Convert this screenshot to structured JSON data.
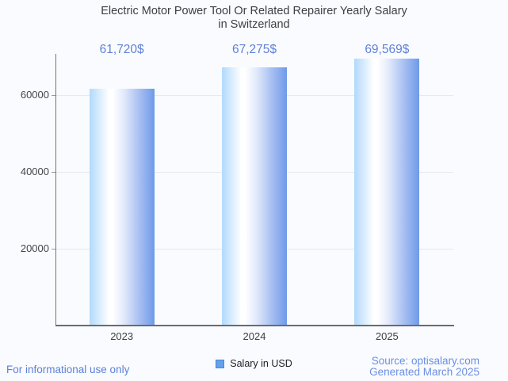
{
  "page": {
    "background": "#fafbfe",
    "accent_blue": "#5f82d7"
  },
  "title": {
    "line1": "Electric Motor Power Tool Or Related Repairer Yearly Salary",
    "line2": "in Switzerland"
  },
  "chart_data": {
    "type": "bar",
    "title": "Electric Motor Power Tool Or Related Repairer Yearly Salary in Switzerland",
    "categories": [
      "2023",
      "2024",
      "2025"
    ],
    "series": [
      {
        "name": "Salary in USD",
        "values": [
          61720,
          67275,
          69569
        ]
      }
    ],
    "value_labels": [
      "61,720$",
      "67,275$",
      "69,569$"
    ],
    "xlabel": "",
    "ylabel": "",
    "ylim": [
      0,
      70722
    ],
    "yticks": [
      {
        "value": 20000,
        "label": "20000"
      },
      {
        "value": 40000,
        "label": "40000"
      },
      {
        "value": 60000,
        "label": "60000"
      }
    ],
    "grid": true,
    "legend_position": "bottom",
    "value_label_color": "#5f82d7",
    "bar_gradient": {
      "left": "#b1d9fc",
      "highlight": "#ffffff",
      "mid": "#dfe8fb",
      "deep": "#aec4f2",
      "right": "#6f9ae9"
    }
  },
  "legend": {
    "label": "Salary in USD",
    "swatch_color": "#64a1ec"
  },
  "footer": {
    "left": "For informational use only",
    "source": "Source: optisalary.com",
    "generated": "Generated March 2025"
  }
}
